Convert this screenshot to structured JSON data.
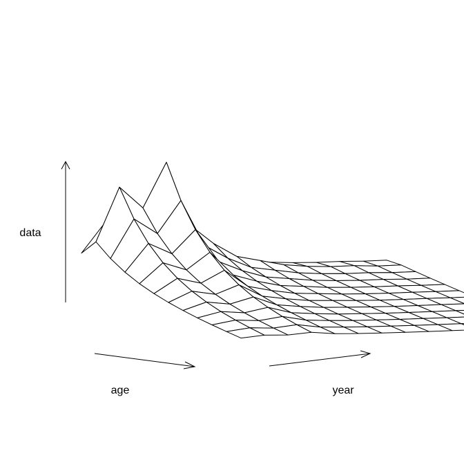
{
  "chart_data": {
    "type": "surface",
    "xlabel": "age",
    "ylabel": "year",
    "zlabel": "data",
    "grid": false,
    "line_color": "#000000",
    "background": "#ffffff"
  }
}
